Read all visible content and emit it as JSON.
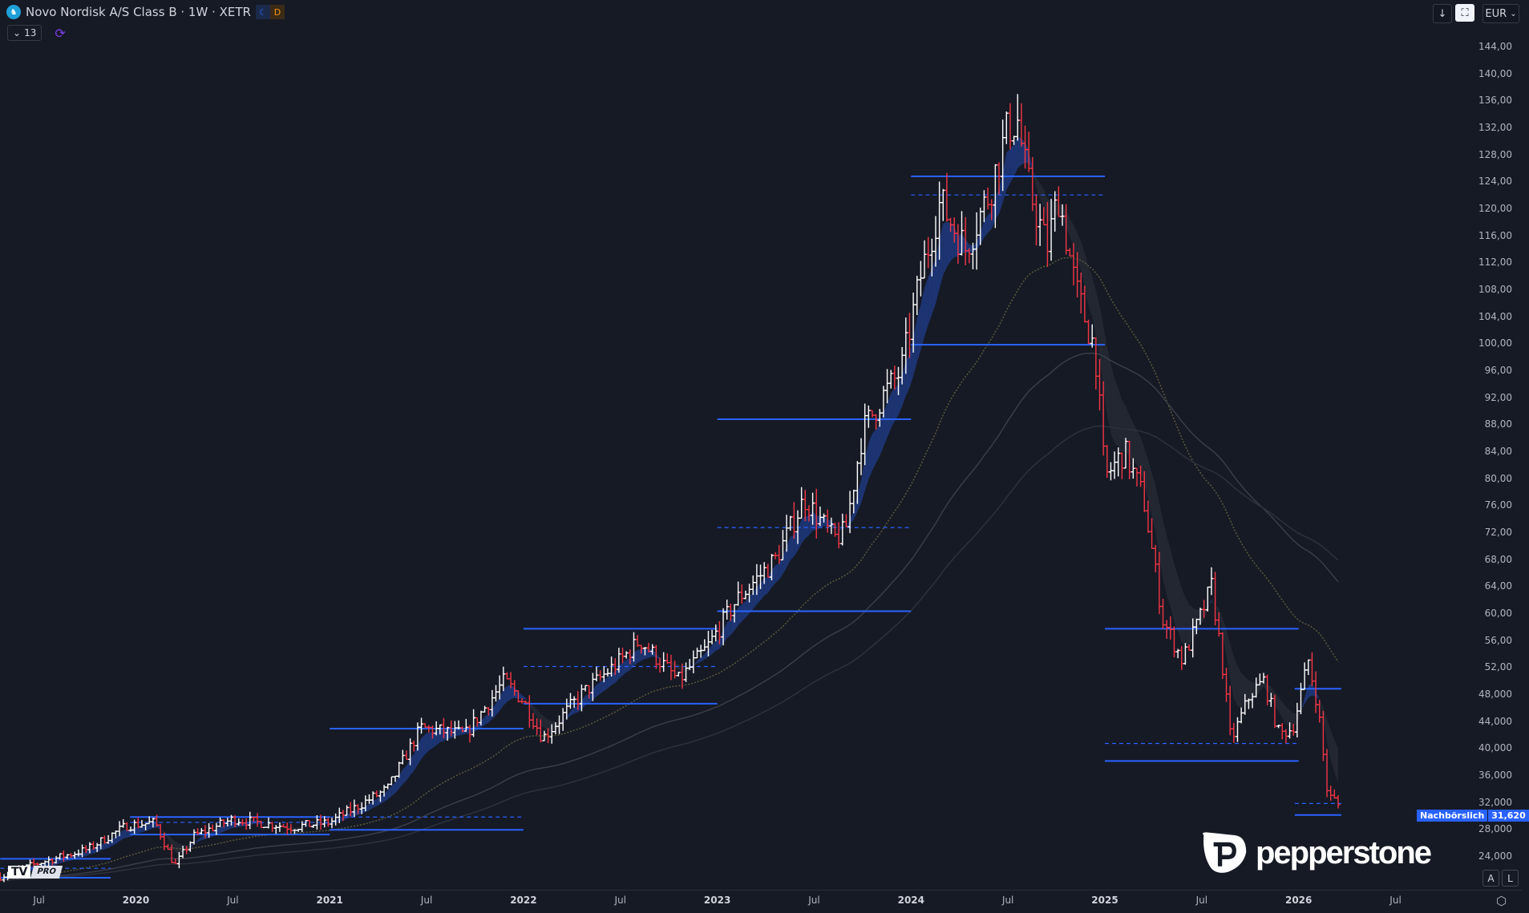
{
  "header": {
    "title": "Novo Nordisk A/S Class B · 1W · XETR",
    "session_moon": "☾",
    "session_d": "D",
    "indicator_count": "13",
    "collapse_icon": "⌄",
    "sync_icon": "⟳",
    "symbol_icon": "♞"
  },
  "toolbar": {
    "down_icon": "↓",
    "fullscreen_icon": "⛶",
    "currency": "EUR",
    "currency_chevron": "⌄"
  },
  "price_axis": {
    "labels": [
      "144,00",
      "140,00",
      "136,00",
      "132,00",
      "128,00",
      "124,00",
      "120,00",
      "116,00",
      "112,00",
      "108,00",
      "104,00",
      "100,00",
      "96,00",
      "92,00",
      "88,00",
      "84,00",
      "80,00",
      "76,00",
      "72,00",
      "68,00",
      "64,00",
      "60,00",
      "56,00",
      "52,00",
      "48,000",
      "44,000",
      "40,000",
      "36,000",
      "32,000",
      "28,000",
      "24,000"
    ],
    "values": [
      144,
      140,
      136,
      132,
      128,
      124,
      120,
      116,
      112,
      108,
      104,
      100,
      96,
      92,
      88,
      84,
      80,
      76,
      72,
      68,
      64,
      60,
      56,
      52,
      48,
      44,
      40,
      36,
      32,
      28,
      24
    ]
  },
  "time_axis": {
    "labels": [
      "Jul",
      "2020",
      "Jul",
      "2021",
      "Jul",
      "2022",
      "Jul",
      "2023",
      "Jul",
      "2024",
      "Jul",
      "2025",
      "Jul",
      "2026",
      "Jul"
    ],
    "dates": [
      2019.5,
      2020,
      2020.5,
      2021,
      2021.5,
      2022,
      2022.5,
      2023,
      2023.5,
      2024,
      2024.5,
      2025,
      2025.5,
      2026,
      2026.5
    ]
  },
  "last_price": {
    "session_label": "Nachbörslich",
    "value": "31,620",
    "price": 31.62
  },
  "buttons": {
    "auto": "A",
    "log": "L",
    "settings_icon": "⬡"
  },
  "logos": {
    "tradingview": "TV",
    "tradingview_tier": "PRO",
    "pepperstone": "pepperstone"
  },
  "colors": {
    "background": "#161a25",
    "up": "#ffffff",
    "down": "#f23645",
    "level": "#2962ff",
    "ema_band_up": "#1f3a80",
    "ema_band_down": "#2a2d38",
    "ema_slow": "#5a5a3a"
  },
  "chart_data": {
    "type": "ohlc",
    "interval": "1W",
    "currency": "EUR",
    "ylim": [
      20,
      146
    ],
    "xlim": [
      2019.3,
      2026.75
    ],
    "price_path": [
      [
        2019.3,
        21
      ],
      [
        2019.5,
        23
      ],
      [
        2019.75,
        25
      ],
      [
        2019.95,
        28.5
      ],
      [
        2020.1,
        29
      ],
      [
        2020.2,
        22.5
      ],
      [
        2020.3,
        27
      ],
      [
        2020.5,
        29.5
      ],
      [
        2020.8,
        28.3
      ],
      [
        2021.0,
        29
      ],
      [
        2021.3,
        34
      ],
      [
        2021.47,
        43
      ],
      [
        2021.7,
        42
      ],
      [
        2021.9,
        50
      ],
      [
        2022.0,
        47
      ],
      [
        2022.1,
        41.5
      ],
      [
        2022.3,
        48
      ],
      [
        2022.5,
        53
      ],
      [
        2022.6,
        56
      ],
      [
        2022.8,
        50
      ],
      [
        2022.95,
        55
      ],
      [
        2023.1,
        62
      ],
      [
        2023.3,
        68
      ],
      [
        2023.45,
        77
      ],
      [
        2023.6,
        71
      ],
      [
        2023.66,
        72
      ],
      [
        2023.75,
        87
      ],
      [
        2023.85,
        92
      ],
      [
        2023.95,
        96
      ],
      [
        2024.05,
        110
      ],
      [
        2024.15,
        121
      ],
      [
        2024.28,
        114
      ],
      [
        2024.4,
        122
      ],
      [
        2024.5,
        132
      ],
      [
        2024.55,
        133
      ],
      [
        2024.6,
        124
      ],
      [
        2024.7,
        114
      ],
      [
        2024.76,
        122
      ],
      [
        2024.85,
        108
      ],
      [
        2024.95,
        99
      ],
      [
        2025.0,
        80
      ],
      [
        2025.1,
        84
      ],
      [
        2025.2,
        77
      ],
      [
        2025.3,
        59
      ],
      [
        2025.4,
        53
      ],
      [
        2025.5,
        60
      ],
      [
        2025.55,
        64
      ],
      [
        2025.6,
        54
      ],
      [
        2025.65,
        41
      ],
      [
        2025.75,
        48
      ],
      [
        2025.82,
        50
      ],
      [
        2025.9,
        42
      ],
      [
        2025.97,
        43
      ],
      [
        2026.05,
        53
      ],
      [
        2026.1,
        46
      ],
      [
        2026.15,
        33
      ],
      [
        2026.22,
        31.6
      ]
    ],
    "levels": [
      {
        "from": 2019.3,
        "to": 2019.87,
        "price": 23.6,
        "style": "solid"
      },
      {
        "from": 2019.3,
        "to": 2019.87,
        "price": 22.2,
        "style": "dashed"
      },
      {
        "from": 2019.3,
        "to": 2019.87,
        "price": 20.8,
        "style": "solid"
      },
      {
        "from": 2019.97,
        "to": 2021,
        "price": 29.8,
        "style": "solid"
      },
      {
        "from": 2019.97,
        "to": 2021,
        "price": 29.0,
        "style": "dashed"
      },
      {
        "from": 2019.97,
        "to": 2021,
        "price": 27.2,
        "style": "solid"
      },
      {
        "from": 2021,
        "to": 2022,
        "price": 42.9,
        "style": "solid"
      },
      {
        "from": 2021,
        "to": 2022,
        "price": 29.8,
        "style": "dashed"
      },
      {
        "from": 2021,
        "to": 2022,
        "price": 27.9,
        "style": "solid"
      },
      {
        "from": 2022,
        "to": 2023,
        "price": 57.7,
        "style": "solid"
      },
      {
        "from": 2022,
        "to": 2023,
        "price": 52.1,
        "style": "dashed"
      },
      {
        "from": 2022,
        "to": 2023,
        "price": 46.6,
        "style": "solid"
      },
      {
        "from": 2023,
        "to": 2024,
        "price": 88.75,
        "style": "solid"
      },
      {
        "from": 2023,
        "to": 2024,
        "price": 72.7,
        "style": "dashed"
      },
      {
        "from": 2023,
        "to": 2024,
        "price": 60.3,
        "style": "solid"
      },
      {
        "from": 2024,
        "to": 2025,
        "price": 124.75,
        "style": "solid"
      },
      {
        "from": 2024,
        "to": 2025,
        "price": 122.0,
        "style": "dashed"
      },
      {
        "from": 2024,
        "to": 2025,
        "price": 99.8,
        "style": "solid"
      },
      {
        "from": 2025,
        "to": 2026,
        "price": 57.7,
        "style": "solid"
      },
      {
        "from": 2025,
        "to": 2026,
        "price": 40.7,
        "style": "dashed"
      },
      {
        "from": 2025,
        "to": 2026,
        "price": 38.1,
        "style": "solid"
      },
      {
        "from": 2025.98,
        "to": 2026.22,
        "price": 48.8,
        "style": "solid"
      },
      {
        "from": 2025.98,
        "to": 2026.22,
        "price": 31.8,
        "style": "dashed"
      },
      {
        "from": 2025.98,
        "to": 2026.22,
        "price": 30.1,
        "style": "solid"
      }
    ]
  }
}
